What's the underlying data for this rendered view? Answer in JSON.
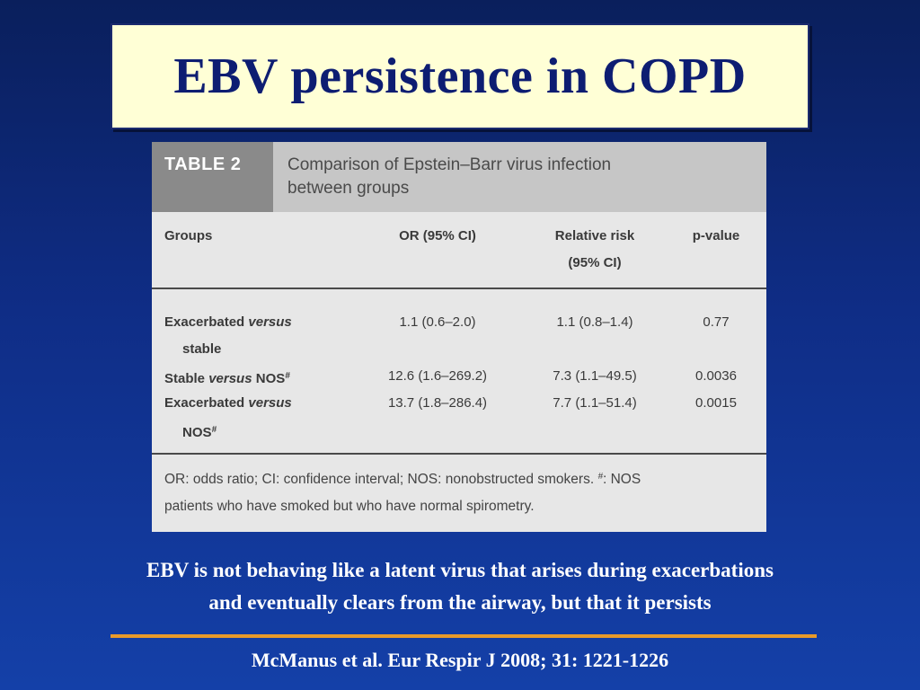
{
  "slide": {
    "title": "EBV persistence in COPD",
    "summary_line1": "EBV is not behaving like a latent virus that arises during exacerbations",
    "summary_line2": "and eventually clears from the airway, but that it persists",
    "citation": "McManus et al. Eur Respir J 2008; 31: 1221-1226"
  },
  "table": {
    "label": "TABLE 2",
    "caption_line1": "Comparison of Epstein–Barr virus infection",
    "caption_line2": "between groups",
    "columns": {
      "groups": "Groups",
      "or": "OR (95% CI)",
      "rr_line1": "Relative risk",
      "rr_line2": "(95% CI)",
      "p": "p-value"
    },
    "rows": [
      {
        "group_a": "Exacerbated ",
        "group_em": "versus",
        "group_b": "stable",
        "or": "1.1 (0.6–2.0)",
        "rr": "1.1 (0.8–1.4)",
        "p": "0.77"
      },
      {
        "group_a": "Stable ",
        "group_em": "versus",
        "group_b": " NOS",
        "group_sup": "#",
        "or": "12.6 (1.6–269.2)",
        "rr": "7.3 (1.1–49.5)",
        "p": "0.0036"
      },
      {
        "group_a": "Exacerbated ",
        "group_em": "versus",
        "group_b": "NOS",
        "group_sup": "#",
        "or": "13.7 (1.8–286.4)",
        "rr": "7.7 (1.1–51.4)",
        "p": "0.0015"
      }
    ],
    "footnote_a": "OR: odds ratio; CI: confidence interval; NOS: nonobstructed smokers. ",
    "footnote_sup": "#",
    "footnote_b": ": NOS",
    "footnote_line2": "patients who have smoked but who have normal spirometry."
  },
  "colors": {
    "background": "#0f2d86",
    "title_box": "#ffffd6",
    "title_text": "#0d1d72",
    "divider": "#e89a2a"
  }
}
